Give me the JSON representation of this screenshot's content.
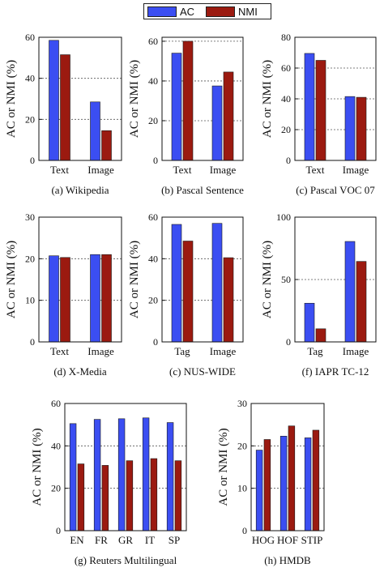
{
  "legend": {
    "items": [
      {
        "label": "AC",
        "color": "#3b4ef2"
      },
      {
        "label": "NMI",
        "color": "#9b1a10"
      }
    ]
  },
  "chart_data": [
    {
      "type": "bar",
      "caption": "(a) Wikipedia",
      "ylabel": "AC or NMI (%)",
      "ylim": [
        0,
        60
      ],
      "yticks": [
        0,
        20,
        40,
        60
      ],
      "categories": [
        "Text",
        "Image"
      ],
      "series": [
        {
          "name": "AC",
          "values": [
            58.5,
            28.5
          ]
        },
        {
          "name": "NMI",
          "values": [
            51.5,
            14.5
          ]
        }
      ]
    },
    {
      "type": "bar",
      "caption": "(b) Pascal Sentence",
      "ylabel": "AC or NMI (%)",
      "ylim": [
        0,
        62
      ],
      "yticks": [
        0,
        20,
        40,
        60
      ],
      "categories": [
        "Text",
        "Image"
      ],
      "series": [
        {
          "name": "AC",
          "values": [
            54,
            37.5
          ]
        },
        {
          "name": "NMI",
          "values": [
            60,
            44.5
          ]
        }
      ]
    },
    {
      "type": "bar",
      "caption": "(c) Pascal VOC 07",
      "ylabel": "AC or NMI (%)",
      "ylim": [
        0,
        80
      ],
      "yticks": [
        0,
        20,
        40,
        60,
        80
      ],
      "categories": [
        "Text",
        "Image"
      ],
      "series": [
        {
          "name": "AC",
          "values": [
            69.5,
            41.5
          ]
        },
        {
          "name": "NMI",
          "values": [
            65,
            41
          ]
        }
      ]
    },
    {
      "type": "bar",
      "caption": "(d) X-Media",
      "ylabel": "AC or NMI (%)",
      "ylim": [
        0,
        30
      ],
      "yticks": [
        0,
        10,
        20,
        30
      ],
      "categories": [
        "Text",
        "Image"
      ],
      "series": [
        {
          "name": "AC",
          "values": [
            20.7,
            21
          ]
        },
        {
          "name": "NMI",
          "values": [
            20.3,
            21
          ]
        }
      ]
    },
    {
      "type": "bar",
      "caption": "(c) NUS-WIDE",
      "ylabel": "AC or NMI (%)",
      "ylim": [
        0,
        60
      ],
      "yticks": [
        0,
        20,
        40,
        60
      ],
      "categories": [
        "Tag",
        "Image"
      ],
      "series": [
        {
          "name": "AC",
          "values": [
            56.5,
            57
          ]
        },
        {
          "name": "NMI",
          "values": [
            48.5,
            40.5
          ]
        }
      ]
    },
    {
      "type": "bar",
      "caption": "(f) IAPR TC-12",
      "ylabel": "AC or NMI (%)",
      "ylim": [
        0,
        100
      ],
      "yticks": [
        0,
        50,
        100
      ],
      "categories": [
        "Tag",
        "Image"
      ],
      "series": [
        {
          "name": "AC",
          "values": [
            31,
            80.5
          ]
        },
        {
          "name": "NMI",
          "values": [
            10.5,
            64.5
          ]
        }
      ]
    },
    {
      "type": "bar",
      "caption": "(g) Reuters Multilingual",
      "ylabel": "AC or NMI (%)",
      "ylim": [
        0,
        60
      ],
      "yticks": [
        0,
        20,
        40,
        60
      ],
      "categories": [
        "EN",
        "FR",
        "GR",
        "IT",
        "SP"
      ],
      "series": [
        {
          "name": "AC",
          "values": [
            50.5,
            52.5,
            52.8,
            53.2,
            51
          ]
        },
        {
          "name": "NMI",
          "values": [
            31.5,
            30.8,
            33,
            34,
            33
          ]
        }
      ]
    },
    {
      "type": "bar",
      "caption": "(h) HMDB",
      "ylabel": "AC or NMI (%)",
      "ylim": [
        0,
        30
      ],
      "yticks": [
        0,
        10,
        20,
        30
      ],
      "categories": [
        "HOG",
        "HOF",
        "STIP"
      ],
      "series": [
        {
          "name": "AC",
          "values": [
            19,
            22.3,
            21.9
          ]
        },
        {
          "name": "NMI",
          "values": [
            21.5,
            24.7,
            23.7
          ]
        }
      ]
    }
  ]
}
